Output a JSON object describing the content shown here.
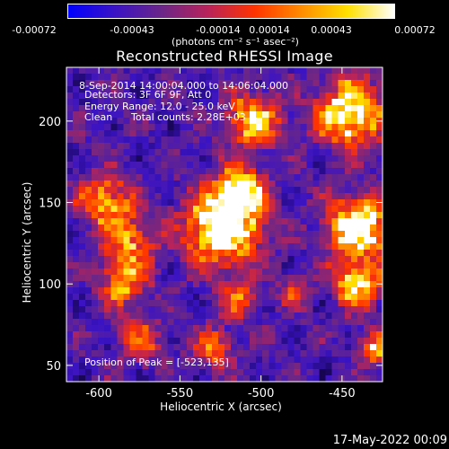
{
  "colorbar": {
    "ticks": [
      "-0.00072",
      "-0.00043",
      "-0.00014",
      "0.00014",
      "0.00043",
      "0.00072"
    ],
    "units_label": "(photons cm⁻² s⁻¹ asec⁻²)",
    "colors": [
      "#0000ff",
      "#3a13c4",
      "#6a2688",
      "#b8235a",
      "#ff3300",
      "#ff8c00",
      "#ffe000",
      "#ffffff"
    ]
  },
  "chart_data": {
    "type": "heatmap",
    "title": "Reconstructed RHESSI Image",
    "xlabel": "Heliocentric X (arcsec)",
    "ylabel": "Heliocentric Y (arcsec)",
    "xlim": [
      -620,
      -425
    ],
    "ylim": [
      40,
      233
    ],
    "x_ticks": [
      -600,
      -550,
      -500,
      -450
    ],
    "y_ticks": [
      50,
      100,
      150,
      200
    ],
    "x_tick_labels": [
      "-600",
      "-550",
      "-500",
      "-450"
    ],
    "y_tick_labels": [
      "50",
      "100",
      "150",
      "200"
    ],
    "value_range": [
      -0.00072,
      0.00072
    ],
    "peak": [
      -523,
      135
    ],
    "annotations": {
      "time_range": "8-Sep-2014 14:00:04.000 to 14:06:04.000",
      "detectors": "Detectors: 3F 6F 9F, Att 0",
      "energy_range": "Energy Range: 12.0 - 25.0 keV",
      "clean": "Clean",
      "total_counts": "Total counts: 2.28E+03",
      "peak_position": "Position of Peak = [-523,135]"
    }
  },
  "footer": {
    "date": "17-May-2022 00:09"
  }
}
